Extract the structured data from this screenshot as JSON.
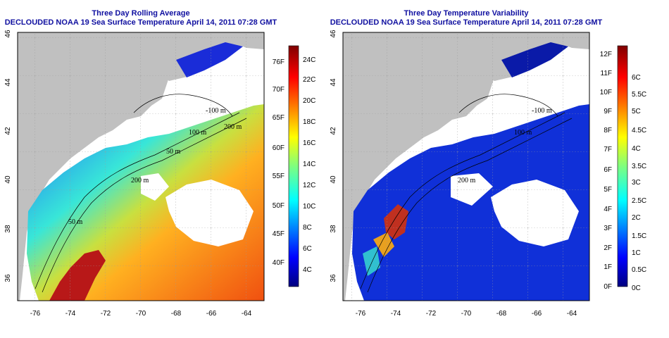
{
  "left_panel": {
    "title_line1": "Three Day Rolling Average",
    "title_line2": "DECLOUDED NOAA 19 Sea Surface Temperature April 14, 2011 07:28 GMT",
    "lon_ticks": [
      "-76",
      "-74",
      "-72",
      "-70",
      "-68",
      "-66",
      "-64"
    ],
    "lat_ticks": [
      "36",
      "38",
      "40",
      "42",
      "44",
      "46"
    ],
    "colorbar": {
      "left_labels": [
        "76F",
        "70F",
        "65F",
        "60F",
        "55F",
        "50F",
        "45F",
        "40F"
      ],
      "right_labels": [
        "24C",
        "22C",
        "20C",
        "18C",
        "16C",
        "14C",
        "12C",
        "10C",
        "8C",
        "6C",
        "4C"
      ]
    },
    "contours": [
      "-100 m",
      "100 m",
      "200 m",
      "50 m",
      "200 m",
      "50 m"
    ]
  },
  "right_panel": {
    "title_line1": "Three Day Temperature Variability",
    "title_line2": "DECLOUDED NOAA 19 Sea Surface Temperature April 14, 2011 07:28 GMT",
    "lon_ticks": [
      "-76",
      "-74",
      "-72",
      "-70",
      "-68",
      "-66",
      "-64"
    ],
    "lat_ticks": [
      "36",
      "38",
      "40",
      "42",
      "44",
      "46"
    ],
    "colorbar": {
      "left_labels": [
        "12F",
        "11F",
        "10F",
        "9F",
        "8F",
        "7F",
        "6F",
        "5F",
        "4F",
        "3F",
        "2F",
        "1F",
        "0F"
      ],
      "right_labels": [
        "6C",
        "5.5C",
        "5C",
        "4.5C",
        "4C",
        "3.5C",
        "3C",
        "2.5C",
        "2C",
        "1.5C",
        "1C",
        "0.5C",
        "0C"
      ]
    },
    "contours": [
      "-100 m",
      "100 m",
      "200 m"
    ]
  },
  "colors": {
    "land": "#c0c0c0",
    "title": "#1010a0",
    "sst_scale": [
      "#00007f",
      "#0000ff",
      "#007fff",
      "#00ffff",
      "#7fff7f",
      "#ffff00",
      "#ff7f00",
      "#ff0000",
      "#7f0000"
    ]
  }
}
